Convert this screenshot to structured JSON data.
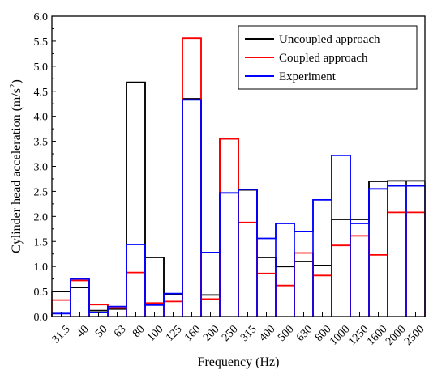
{
  "chart_data": {
    "type": "line",
    "step": true,
    "xlabel": "Frequency (Hz)",
    "ylabel_main": "Cylinder head acceleration (m/s",
    "ylabel_sup": "2",
    "ylabel_end": ")",
    "categories": [
      "31.5",
      "40",
      "50",
      "63",
      "80",
      "100",
      "125",
      "160",
      "200",
      "250",
      "315",
      "400",
      "500",
      "630",
      "800",
      "1000",
      "1250",
      "1600",
      "2000",
      "2500"
    ],
    "ylim": [
      0,
      6
    ],
    "yticks": [
      "0.0",
      "0.5",
      "1.0",
      "1.5",
      "2.0",
      "2.5",
      "3.0",
      "3.5",
      "4.0",
      "4.5",
      "5.0",
      "5.5",
      "6.0"
    ],
    "grid": false,
    "legend_position": "top-right",
    "series": [
      {
        "name": "Uncoupled approach",
        "color": "#000000",
        "values": [
          0.5,
          0.58,
          0.12,
          0.15,
          4.68,
          1.18,
          0.45,
          4.35,
          0.43,
          3.55,
          2.53,
          1.18,
          1.0,
          1.1,
          1.02,
          1.94,
          1.94,
          2.7,
          2.71,
          2.71
        ]
      },
      {
        "name": "Coupled approach",
        "color": "#ff0000",
        "values": [
          0.33,
          0.72,
          0.24,
          0.17,
          0.88,
          0.27,
          0.3,
          5.56,
          0.35,
          3.55,
          1.88,
          0.86,
          0.62,
          1.27,
          0.82,
          1.42,
          1.61,
          1.23,
          2.08,
          2.08
        ]
      },
      {
        "name": "Experiment",
        "color": "#0000ff",
        "values": [
          0.06,
          0.75,
          0.08,
          0.2,
          1.44,
          0.23,
          0.46,
          4.33,
          1.28,
          2.47,
          2.54,
          1.56,
          1.86,
          1.7,
          2.33,
          3.22,
          1.86,
          2.55,
          2.61,
          2.61
        ]
      }
    ]
  }
}
